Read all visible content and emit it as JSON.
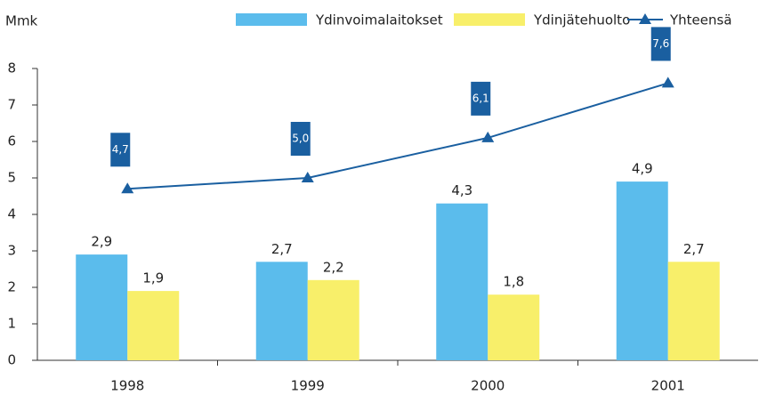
{
  "chart_data": {
    "type": "bar-line",
    "ylabel": "Mmk",
    "categories": [
      "1998",
      "1999",
      "2000",
      "2001"
    ],
    "series": [
      {
        "name": "Ydinvoimalaitokset",
        "type": "bar",
        "color": "#5bbcec",
        "values": [
          2.9,
          2.7,
          4.3,
          4.9
        ],
        "value_labels": [
          "2,9",
          "2,7",
          "4,3",
          "4,9"
        ]
      },
      {
        "name": "Ydinjätehuolto",
        "type": "bar",
        "color": "#f8ef6a",
        "values": [
          1.9,
          2.2,
          1.8,
          2.7
        ],
        "value_labels": [
          "1,9",
          "2,2",
          "1,8",
          "2,7"
        ]
      },
      {
        "name": "Yhteensä",
        "type": "line",
        "color": "#1a5fa0",
        "values": [
          4.7,
          5.0,
          6.1,
          7.6
        ],
        "value_labels": [
          "4,7",
          "5,0",
          "6,1",
          "7,6"
        ]
      }
    ],
    "ylim": [
      0,
      8
    ],
    "yticks": [
      0,
      1,
      2,
      3,
      4,
      5,
      6,
      7,
      8
    ]
  }
}
